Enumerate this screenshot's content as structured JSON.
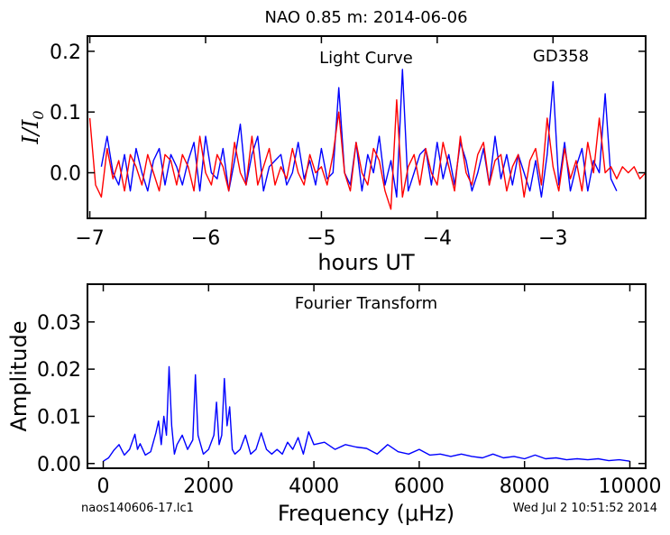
{
  "figure": {
    "title": "NAO 0.85 m:  2014-06-06",
    "footer_left": "naos140606-17.lc1",
    "footer_right": "Wed Jul  2 10:51:52 2014"
  },
  "chart_data": [
    {
      "type": "line",
      "annotation_left": "Light Curve",
      "annotation_right": "GD358",
      "xlabel": "hours UT",
      "ylabel": "I/I0",
      "xlim": [
        -7.02,
        -2.2
      ],
      "ylim": [
        -0.075,
        0.225
      ],
      "xticks": [
        -7,
        -6,
        -5,
        -4,
        -3
      ],
      "xtick_labels": [
        "−7",
        "−6",
        "−5",
        "−4",
        "−3"
      ],
      "yticks": [
        0.0,
        0.1,
        0.2
      ],
      "ytick_labels": [
        "0.0",
        "0.1",
        "0.2"
      ],
      "grid": false,
      "series": [
        {
          "color": "#0000ff",
          "x": [
            -6.9,
            -6.85,
            -6.8,
            -6.75,
            -6.7,
            -6.65,
            -6.6,
            -6.55,
            -6.5,
            -6.45,
            -6.4,
            -6.35,
            -6.3,
            -6.25,
            -6.2,
            -6.15,
            -6.1,
            -6.05,
            -6.0,
            -5.95,
            -5.9,
            -5.85,
            -5.8,
            -5.75,
            -5.7,
            -5.65,
            -5.6,
            -5.55,
            -5.5,
            -5.45,
            -5.4,
            -5.35,
            -5.3,
            -5.25,
            -5.2,
            -5.15,
            -5.1,
            -5.05,
            -5.0,
            -4.95,
            -4.9,
            -4.85,
            -4.8,
            -4.75,
            -4.7,
            -4.65,
            -4.6,
            -4.55,
            -4.5,
            -4.45,
            -4.4,
            -4.35,
            -4.3,
            -4.25,
            -4.2,
            -4.15,
            -4.1,
            -4.05,
            -4.0,
            -3.95,
            -3.9,
            -3.85,
            -3.8,
            -3.75,
            -3.7,
            -3.65,
            -3.6,
            -3.55,
            -3.5,
            -3.45,
            -3.4,
            -3.35,
            -3.3,
            -3.25,
            -3.2,
            -3.15,
            -3.1,
            -3.05,
            -3.0,
            -2.95,
            -2.9,
            -2.85,
            -2.8,
            -2.75,
            -2.7,
            -2.65,
            -2.6,
            -2.55,
            -2.5,
            -2.45
          ],
          "y": [
            0.01,
            0.06,
            0.0,
            -0.02,
            0.03,
            -0.03,
            0.04,
            0.0,
            -0.03,
            0.02,
            0.04,
            -0.02,
            0.03,
            0.01,
            -0.02,
            0.02,
            0.05,
            -0.03,
            0.06,
            0.0,
            -0.01,
            0.04,
            -0.03,
            0.02,
            0.08,
            -0.02,
            0.03,
            0.06,
            -0.03,
            0.01,
            0.02,
            0.03,
            -0.02,
            0.0,
            0.05,
            -0.01,
            0.02,
            -0.02,
            0.04,
            -0.01,
            0.0,
            0.14,
            0.0,
            -0.02,
            0.05,
            -0.03,
            0.03,
            0.0,
            0.06,
            -0.02,
            0.02,
            -0.04,
            0.17,
            -0.03,
            0.0,
            0.03,
            0.04,
            -0.02,
            0.05,
            -0.01,
            0.03,
            -0.02,
            0.05,
            0.02,
            -0.03,
            0.0,
            0.04,
            -0.02,
            0.06,
            -0.01,
            0.03,
            -0.02,
            0.03,
            0.0,
            -0.03,
            0.02,
            -0.04,
            0.03,
            0.15,
            -0.02,
            0.05,
            -0.03,
            0.01,
            0.04,
            -0.03,
            0.02,
            0.0,
            0.13,
            -0.01,
            -0.03
          ]
        },
        {
          "color": "#ff0000",
          "x": [
            -7.0,
            -6.95,
            -6.9,
            -6.85,
            -6.8,
            -6.75,
            -6.7,
            -6.65,
            -6.6,
            -6.55,
            -6.5,
            -6.45,
            -6.4,
            -6.35,
            -6.3,
            -6.25,
            -6.2,
            -6.15,
            -6.1,
            -6.05,
            -6.0,
            -5.95,
            -5.9,
            -5.85,
            -5.8,
            -5.75,
            -5.7,
            -5.65,
            -5.6,
            -5.55,
            -5.5,
            -5.45,
            -5.4,
            -5.35,
            -5.3,
            -5.25,
            -5.2,
            -5.15,
            -5.1,
            -5.05,
            -5.0,
            -4.95,
            -4.9,
            -4.85,
            -4.8,
            -4.75,
            -4.7,
            -4.65,
            -4.6,
            -4.55,
            -4.5,
            -4.45,
            -4.4,
            -4.35,
            -4.3,
            -4.25,
            -4.2,
            -4.15,
            -4.1,
            -4.05,
            -4.0,
            -3.95,
            -3.9,
            -3.85,
            -3.8,
            -3.75,
            -3.7,
            -3.65,
            -3.6,
            -3.55,
            -3.5,
            -3.45,
            -3.4,
            -3.35,
            -3.3,
            -3.25,
            -3.2,
            -3.15,
            -3.1,
            -3.05,
            -3.0,
            -2.95,
            -2.9,
            -2.85,
            -2.8,
            -2.75,
            -2.7,
            -2.65,
            -2.6,
            -2.55,
            -2.5,
            -2.45,
            -2.4,
            -2.35,
            -2.3,
            -2.25,
            -2.2
          ],
          "y": [
            0.09,
            -0.02,
            -0.04,
            0.04,
            -0.01,
            0.02,
            -0.03,
            0.03,
            0.01,
            -0.02,
            0.03,
            0.0,
            -0.03,
            0.03,
            0.02,
            -0.02,
            0.03,
            0.01,
            -0.03,
            0.06,
            0.0,
            -0.02,
            0.03,
            0.01,
            -0.03,
            0.05,
            0.0,
            -0.02,
            0.06,
            -0.02,
            0.01,
            0.04,
            -0.02,
            0.01,
            -0.01,
            0.04,
            0.0,
            -0.02,
            0.03,
            0.0,
            0.01,
            -0.02,
            0.03,
            0.1,
            0.0,
            -0.03,
            0.05,
            0.0,
            -0.02,
            0.04,
            0.02,
            -0.03,
            -0.06,
            0.12,
            -0.04,
            0.01,
            0.03,
            -0.02,
            0.04,
            0.0,
            -0.02,
            0.05,
            0.01,
            -0.03,
            0.06,
            0.0,
            -0.02,
            0.03,
            0.05,
            -0.02,
            0.02,
            0.03,
            -0.03,
            0.01,
            0.03,
            -0.04,
            0.02,
            0.04,
            -0.02,
            0.09,
            0.01,
            -0.03,
            0.04,
            -0.01,
            0.02,
            -0.03,
            0.05,
            0.0,
            0.09,
            0.0,
            0.01,
            -0.01,
            0.01,
            0.0,
            0.01,
            -0.01,
            0.0
          ]
        }
      ]
    },
    {
      "type": "line",
      "annotation": "Fourier Transform",
      "xlabel": "Frequency (μHz)",
      "ylabel": "Amplitude",
      "xlim": [
        -300,
        10300
      ],
      "ylim": [
        -0.001,
        0.038
      ],
      "xticks": [
        0,
        2000,
        4000,
        6000,
        8000,
        10000
      ],
      "xtick_labels": [
        "0",
        "2000",
        "4000",
        "6000",
        "8000",
        "10000"
      ],
      "yticks": [
        0.0,
        0.01,
        0.02,
        0.03
      ],
      "ytick_labels": [
        "0.00",
        "0.01",
        "0.02",
        "0.03"
      ],
      "grid": false,
      "series": [
        {
          "color": "#0000ff",
          "x": [
            0,
            100,
            200,
            300,
            400,
            500,
            600,
            650,
            700,
            800,
            900,
            1000,
            1050,
            1100,
            1150,
            1200,
            1250,
            1300,
            1350,
            1400,
            1500,
            1600,
            1700,
            1750,
            1800,
            1900,
            2000,
            2100,
            2150,
            2200,
            2250,
            2300,
            2350,
            2400,
            2450,
            2500,
            2600,
            2700,
            2800,
            2900,
            3000,
            3100,
            3200,
            3300,
            3400,
            3500,
            3600,
            3700,
            3800,
            3900,
            4000,
            4200,
            4400,
            4600,
            4800,
            5000,
            5200,
            5400,
            5600,
            5800,
            6000,
            6200,
            6400,
            6600,
            6800,
            7000,
            7200,
            7400,
            7600,
            7800,
            8000,
            8200,
            8400,
            8600,
            8800,
            9000,
            9200,
            9400,
            9600,
            9800,
            10000
          ],
          "y": [
            0.0005,
            0.0012,
            0.0028,
            0.004,
            0.0018,
            0.003,
            0.0062,
            0.003,
            0.0042,
            0.0018,
            0.0025,
            0.0065,
            0.009,
            0.004,
            0.01,
            0.006,
            0.0205,
            0.008,
            0.002,
            0.004,
            0.006,
            0.003,
            0.005,
            0.0188,
            0.006,
            0.002,
            0.003,
            0.006,
            0.013,
            0.004,
            0.006,
            0.018,
            0.008,
            0.012,
            0.003,
            0.002,
            0.003,
            0.006,
            0.002,
            0.003,
            0.0065,
            0.003,
            0.002,
            0.003,
            0.002,
            0.0045,
            0.003,
            0.0055,
            0.002,
            0.0067,
            0.004,
            0.0045,
            0.003,
            0.004,
            0.0035,
            0.0032,
            0.002,
            0.004,
            0.0025,
            0.002,
            0.003,
            0.0018,
            0.002,
            0.0015,
            0.002,
            0.0015,
            0.0012,
            0.002,
            0.0012,
            0.0015,
            0.001,
            0.0018,
            0.001,
            0.0012,
            0.0008,
            0.001,
            0.0008,
            0.001,
            0.0006,
            0.0008,
            0.0005
          ]
        }
      ]
    }
  ]
}
